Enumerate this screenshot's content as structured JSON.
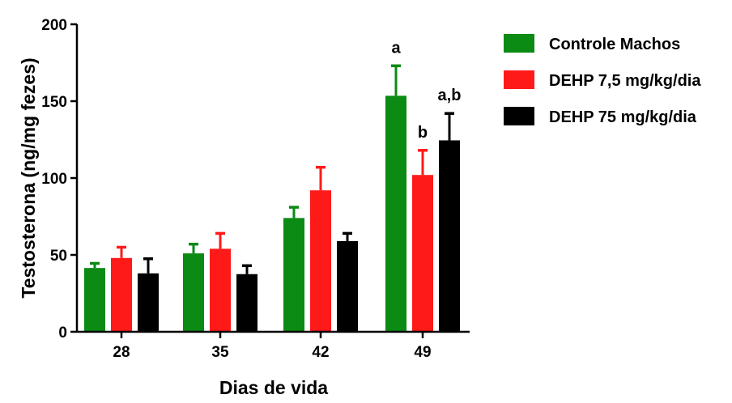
{
  "chart_data": {
    "type": "bar",
    "title": "",
    "xlabel": "Dias de vida",
    "ylabel": "Testosterona (ng/mg fezes)",
    "categories": [
      "28",
      "35",
      "42",
      "49"
    ],
    "ylim": [
      0,
      200
    ],
    "yticks": [
      "0",
      "50",
      "100",
      "150",
      "200"
    ],
    "grid": false,
    "legend_position": "top-right",
    "series": [
      {
        "name": "Controle Machos",
        "color": "#0b8a14",
        "values": [
          41.5,
          51,
          74,
          153.5
        ],
        "errors": [
          3,
          6,
          7,
          19.5
        ],
        "annotations": [
          "",
          "",
          "",
          "a"
        ]
      },
      {
        "name": "DEHP 7,5 mg/kg/dia",
        "color": "#ff1a1a",
        "values": [
          48,
          54,
          92,
          102
        ],
        "errors": [
          7,
          10,
          15,
          16
        ],
        "annotations": [
          "",
          "",
          "",
          "b"
        ]
      },
      {
        "name": "DEHP 75 mg/kg/dia",
        "color": "#000000",
        "values": [
          38,
          37.5,
          59,
          124.5
        ],
        "errors": [
          9.5,
          5.5,
          5,
          17.5
        ],
        "annotations": [
          "",
          "",
          "",
          "a,b"
        ]
      }
    ]
  }
}
